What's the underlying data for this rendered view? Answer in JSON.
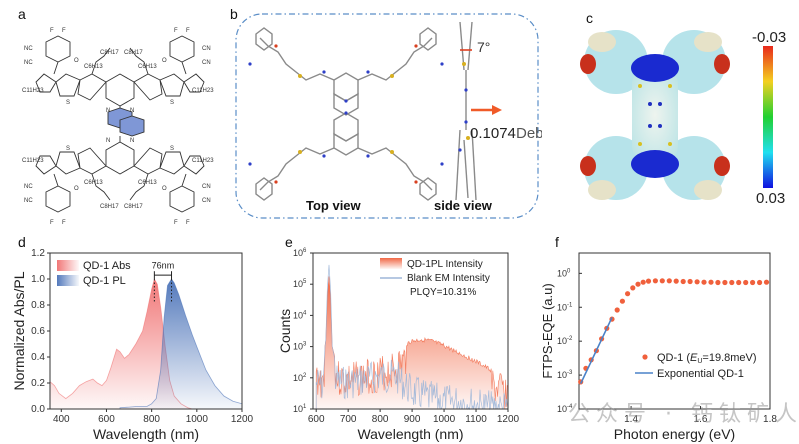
{
  "panels": {
    "a": {
      "letter": "a",
      "structure_labels": {
        "f": "F",
        "nc": "NC",
        "cn": "CN",
        "o": "O",
        "n": "N",
        "s": "S",
        "c8h17": "C8H17",
        "c6h13": "C6H13",
        "c11h23": "C11H23"
      },
      "highlight_color": "#7f97d6"
    },
    "b": {
      "letter": "b",
      "angle_label": "7°",
      "dipole_value": "0.1074",
      "dipole_unit": "Debye",
      "top_view_label": "Top view",
      "side_view_label": "side view",
      "arrow_color": "#f05a28",
      "border_color": "#5b8ec7"
    },
    "c": {
      "letter": "c",
      "colorbar_top": "-0.03",
      "colorbar_bottom": "0.03"
    }
  },
  "chart_data": [
    {
      "id": "d",
      "letter": "d",
      "type": "area",
      "xlabel": "Wavelength (nm)",
      "ylabel": "Normalized Abs/PL",
      "xlim": [
        350,
        1200
      ],
      "ylim": [
        0.0,
        1.2
      ],
      "xticks": [
        "400",
        "600",
        "800",
        "1000",
        "1200"
      ],
      "xtick_values": [
        400,
        600,
        800,
        1000,
        1200
      ],
      "yticks": [
        "0.0",
        "0.2",
        "0.4",
        "0.6",
        "0.8",
        "1.0",
        "1.2"
      ],
      "ytick_values": [
        0.0,
        0.2,
        0.4,
        0.6,
        0.8,
        1.0,
        1.2
      ],
      "legend_position": "top-left",
      "annotation": "76nm",
      "annotation_x": [
        812,
        888
      ],
      "series": [
        {
          "name": "QD-1 Abs",
          "color": "#f07070",
          "x": [
            350,
            370,
            390,
            420,
            450,
            480,
            510,
            540,
            560,
            580,
            600,
            620,
            645,
            660,
            680,
            700,
            730,
            760,
            780,
            800,
            812,
            825,
            840,
            860,
            880,
            900,
            930,
            960,
            980
          ],
          "y": [
            0.21,
            0.18,
            0.12,
            0.08,
            0.12,
            0.18,
            0.21,
            0.23,
            0.2,
            0.18,
            0.22,
            0.32,
            0.46,
            0.44,
            0.39,
            0.42,
            0.5,
            0.6,
            0.75,
            0.92,
            1.0,
            0.96,
            0.78,
            0.48,
            0.22,
            0.1,
            0.04,
            0.01,
            0.0
          ]
        },
        {
          "name": "QD-1 PL",
          "color": "#4a72b8",
          "x": [
            660,
            700,
            740,
            780,
            800,
            820,
            840,
            855,
            870,
            888,
            900,
            920,
            950,
            980,
            1000,
            1040,
            1080,
            1120,
            1160,
            1200
          ],
          "y": [
            0.01,
            0.015,
            0.02,
            0.02,
            0.04,
            0.08,
            0.3,
            0.7,
            0.95,
            1.0,
            0.97,
            0.88,
            0.72,
            0.57,
            0.48,
            0.3,
            0.18,
            0.1,
            0.06,
            0.04
          ]
        }
      ]
    },
    {
      "id": "e",
      "letter": "e",
      "type": "area",
      "xlabel": "Wavelength (nm)",
      "ylabel": "Counts",
      "xlim": [
        590,
        1200
      ],
      "ylim_log10": [
        1,
        6
      ],
      "xticks": [
        "600",
        "700",
        "800",
        "900",
        "1000",
        "1100",
        "1200"
      ],
      "xtick_values": [
        600,
        700,
        800,
        900,
        1000,
        1100,
        1200
      ],
      "yticks": [
        "10",
        "10",
        "10",
        "10",
        "10",
        "10"
      ],
      "ytick_exponents": [
        "1",
        "2",
        "3",
        "4",
        "5",
        "6"
      ],
      "ytick_values_log10": [
        1,
        2,
        3,
        4,
        5,
        6
      ],
      "legend_position": "top-right",
      "annotation": "PLQY=10.31%",
      "series": [
        {
          "name": "QD-1PL Intensity",
          "color": "#f0603c",
          "x": [
            600,
            620,
            630,
            635,
            640,
            645,
            650,
            660,
            680,
            700,
            750,
            800,
            850,
            880,
            900,
            930,
            960,
            1000,
            1050,
            1100,
            1150,
            1200
          ],
          "y_log10": [
            2.6,
            2.5,
            3.2,
            4.6,
            5.25,
            4.5,
            3.0,
            2.6,
            2.5,
            2.5,
            2.6,
            2.7,
            2.9,
            3.15,
            3.25,
            3.3,
            3.25,
            3.1,
            2.85,
            2.6,
            2.3,
            2.1
          ]
        },
        {
          "name": "Blank EM Intensity",
          "color": "#9db6d8",
          "x": [
            600,
            620,
            630,
            635,
            640,
            645,
            650,
            660,
            680,
            700,
            750,
            800,
            850,
            880,
            900,
            930,
            960,
            1000,
            1050,
            1100,
            1150,
            1200
          ],
          "y_log10": [
            2.4,
            2.3,
            3.2,
            4.9,
            5.62,
            4.8,
            3.0,
            2.5,
            2.4,
            2.4,
            2.5,
            2.6,
            2.6,
            2.3,
            2.1,
            2.0,
            1.9,
            1.8,
            1.8,
            1.7,
            1.6,
            1.6
          ]
        }
      ]
    },
    {
      "id": "f",
      "letter": "f",
      "type": "scatter",
      "xlabel": "Photon energy (eV)",
      "ylabel": "FTPS-EQE (a.u)",
      "xlim": [
        1.25,
        1.8
      ],
      "ylim_log10": [
        -4,
        0.6
      ],
      "xticks": [
        "1.4",
        "1.6",
        "1.8"
      ],
      "xtick_values": [
        1.4,
        1.6,
        1.8
      ],
      "yticks": [
        "10",
        "10",
        "10",
        "10",
        "10"
      ],
      "ytick_exponents": [
        "-4",
        "-3",
        "-2",
        "-1",
        "0"
      ],
      "ytick_values_log10": [
        -4,
        -3,
        -2,
        -1,
        0
      ],
      "legend_position": "right",
      "series": [
        {
          "name": "QD-1 (",
          "name_italic": "E",
          "name_sub": "U",
          "name_tail": "=19.8meV)",
          "color": "#f0603c",
          "x": [
            1.255,
            1.27,
            1.285,
            1.3,
            1.315,
            1.33,
            1.345,
            1.36,
            1.375,
            1.39,
            1.405,
            1.42,
            1.435,
            1.45,
            1.47,
            1.49,
            1.51,
            1.53,
            1.55,
            1.57,
            1.59,
            1.61,
            1.63,
            1.65,
            1.67,
            1.69,
            1.71,
            1.73,
            1.75,
            1.77,
            1.79
          ],
          "y_log10": [
            -3.2,
            -2.8,
            -2.55,
            -2.28,
            -1.93,
            -1.62,
            -1.35,
            -1.08,
            -0.82,
            -0.6,
            -0.43,
            -0.32,
            -0.26,
            -0.23,
            -0.22,
            -0.22,
            -0.22,
            -0.23,
            -0.24,
            -0.24,
            -0.25,
            -0.26,
            -0.26,
            -0.27,
            -0.27,
            -0.27,
            -0.27,
            -0.27,
            -0.27,
            -0.27,
            -0.26
          ]
        },
        {
          "name": "Exponential QD-1",
          "color": "#4a82c8",
          "x": [
            1.255,
            1.345
          ],
          "y_log10": [
            -3.25,
            -1.3
          ]
        }
      ]
    }
  ],
  "watermark": "公众号 · 钙钛矿人"
}
